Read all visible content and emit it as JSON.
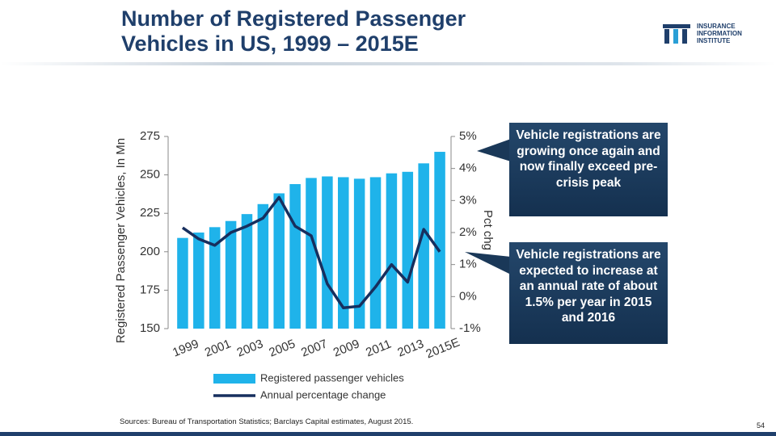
{
  "header": {
    "title": "Number of Registered Passenger Vehicles in US, 1999 – 2015E",
    "logo": [
      "INSURANCE",
      "INFORMATION",
      "INSTITUTE"
    ]
  },
  "chart_data": {
    "type": "bar-line",
    "categories": [
      "1999",
      null,
      "2001",
      null,
      "2003",
      null,
      "2005",
      null,
      "2007",
      null,
      "2009",
      null,
      "2011",
      null,
      "2013",
      null,
      "2015E"
    ],
    "series": [
      {
        "name": "Registered passenger vehicles",
        "type": "bar",
        "color": "#1fb3ea",
        "values": [
          209,
          212.5,
          216,
          220,
          224.5,
          231,
          238,
          244,
          248,
          249,
          248.5,
          247.5,
          248.5,
          251,
          252,
          257.5,
          265
        ]
      },
      {
        "name": "Annual percentage change",
        "type": "line",
        "axis": "y2",
        "color": "#172f5e",
        "values": [
          2.15,
          1.8,
          1.6,
          2.0,
          2.2,
          2.45,
          3.1,
          2.2,
          1.9,
          0.4,
          -0.35,
          -0.3,
          0.3,
          1.0,
          0.45,
          2.1,
          1.4
        ]
      }
    ],
    "y_label": "Registered Passenger Vehicles, In Mn",
    "y2_label": "Pct chg",
    "ylim": [
      150,
      275
    ],
    "yticks": [
      150,
      175,
      200,
      225,
      250,
      275
    ],
    "y2lim": [
      -1,
      5
    ],
    "y2ticks": [
      {
        "value": -1,
        "label": "-1%"
      },
      {
        "value": 0,
        "label": "0%"
      },
      {
        "value": 1,
        "label": "1%"
      },
      {
        "value": 2,
        "label": "2%"
      },
      {
        "value": 3,
        "label": "3%"
      },
      {
        "value": 4,
        "label": "4%"
      },
      {
        "value": 5,
        "label": "5%"
      }
    ]
  },
  "callouts": [
    "Vehicle registrations are growing once again and now finally exceed pre-crisis peak",
    "Vehicle registrations are expected to increase at an annual rate of about 1.5% per year in 2015 and 2016"
  ],
  "footer": {
    "source": "Sources: Bureau of Transportation Statistics; Barclays Capital estimates, August 2015.",
    "page": "54"
  }
}
